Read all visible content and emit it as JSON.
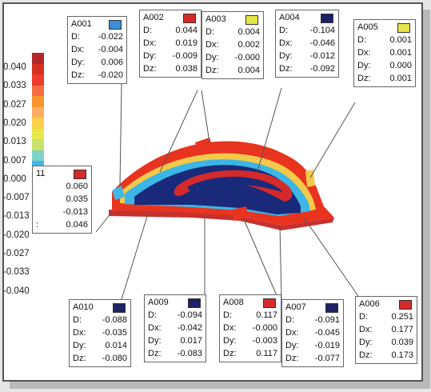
{
  "legend": {
    "colors": [
      "#b3262a",
      "#d7301f",
      "#ef3b2c",
      "#f46d43",
      "#f8952e",
      "#fdae61",
      "#fdd049",
      "#e8e84a",
      "#c8e26a",
      "#7fd3c6",
      "#41b6e6",
      "#2c8fd6",
      "#1f6fbf",
      "#1f4fa0",
      "#1c3180",
      "#1a1f5e"
    ],
    "labels": [
      "0.040",
      "0.033",
      "0.027",
      "0.020",
      "0.013",
      "0.007",
      "0.000",
      "-0.007",
      "-0.013",
      "-0.020",
      "-0.027",
      "-0.033",
      "-0.040"
    ]
  },
  "annotations": [
    {
      "id": "A001",
      "color": "#3b8fd9",
      "rows": [
        [
          "D:",
          "-0.022"
        ],
        [
          "Dx:",
          "-0.004"
        ],
        [
          "Dy:",
          "0.006"
        ],
        [
          "Dz:",
          "-0.020"
        ]
      ]
    },
    {
      "id": "A002",
      "color": "#d42a2a",
      "rows": [
        [
          "D:",
          "0.044"
        ],
        [
          "Dx:",
          "0.019"
        ],
        [
          "Dy:",
          "-0.009"
        ],
        [
          "Dz:",
          "0.038"
        ]
      ]
    },
    {
      "id": "A003",
      "color": "#e6e64a",
      "rows": [
        [
          "D:",
          "0.004"
        ],
        [
          "Dx:",
          "0.002"
        ],
        [
          "Dy:",
          "-0.000"
        ],
        [
          "Dz:",
          "0.004"
        ]
      ]
    },
    {
      "id": "A004",
      "color": "#1c2266",
      "rows": [
        [
          "D:",
          "-0.104"
        ],
        [
          "Dx:",
          "-0.046"
        ],
        [
          "Dy:",
          "-0.012"
        ],
        [
          "Dz:",
          "-0.092"
        ]
      ]
    },
    {
      "id": "A005",
      "color": "#e6e64a",
      "rows": [
        [
          "D:",
          "0.001"
        ],
        [
          "Dx:",
          "0.001"
        ],
        [
          "Dy:",
          "0.000"
        ],
        [
          "Dz:",
          "0.001"
        ]
      ]
    },
    {
      "id": "11",
      "color": "#d42a2a",
      "rows": [
        [
          "",
          "0.060"
        ],
        [
          "",
          "0.035"
        ],
        [
          "",
          "-0.013"
        ],
        [
          ":",
          "0.046"
        ]
      ]
    },
    {
      "id": "A010",
      "color": "#1c2266",
      "rows": [
        [
          "D:",
          "-0.088"
        ],
        [
          "Dx:",
          "-0.035"
        ],
        [
          "Dy:",
          "0.014"
        ],
        [
          "Dz:",
          "-0.080"
        ]
      ]
    },
    {
      "id": "A009",
      "color": "#1c2266",
      "rows": [
        [
          "D:",
          "-0.094"
        ],
        [
          "Dx:",
          "-0.042"
        ],
        [
          "Dy:",
          "0.017"
        ],
        [
          "Dz:",
          "-0.083"
        ]
      ]
    },
    {
      "id": "A008",
      "color": "#d42a2a",
      "rows": [
        [
          "D:",
          "0.117"
        ],
        [
          "Dx:",
          "-0.000"
        ],
        [
          "Dy:",
          "-0.003"
        ],
        [
          "Dz:",
          "0.117"
        ]
      ]
    },
    {
      "id": "A007",
      "color": "#1c2266",
      "rows": [
        [
          "D:",
          "-0.091"
        ],
        [
          "Dx:",
          "-0.045"
        ],
        [
          "Dy:",
          "-0.019"
        ],
        [
          "Dz:",
          "-0.077"
        ]
      ]
    },
    {
      "id": "A006",
      "color": "#d42a2a",
      "rows": [
        [
          "D:",
          "0.251"
        ],
        [
          "Dx:",
          "0.177"
        ],
        [
          "Dy:",
          "0.039"
        ],
        [
          "Dz:",
          "0.173"
        ]
      ]
    }
  ]
}
